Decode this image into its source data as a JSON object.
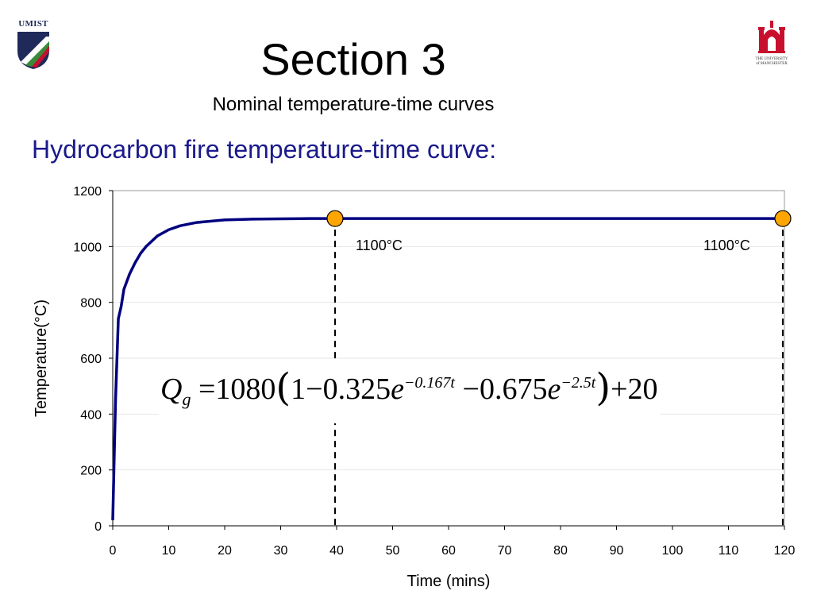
{
  "header": {
    "logo_left_text": "UMIST",
    "logo_right_text": [
      "THE UNIVERSITY",
      "of MANCHESTER"
    ],
    "title": "Section 3",
    "subtitle": "Nominal temperature-time curves",
    "heading": "Hydrocarbon fire temperature-time curve:"
  },
  "colors": {
    "heading": "#1a1a8c",
    "curve": "#000080",
    "marker_fill": "#ffa500",
    "logo_navy": "#1f2a5a",
    "logo_green": "#3a8a3a",
    "logo_red": "#c8102e"
  },
  "formula": {
    "lhs": "Q",
    "lhs_sub": "g",
    "eq": "=",
    "coef": "1080",
    "open": "(",
    "one": "1",
    "minus1": "−",
    "a": "0.325",
    "e1": "e",
    "exp1": "−0.167t",
    "minus2": "−",
    "b": "0.675",
    "e2": "e",
    "exp2": "−2.5t",
    "close": ")",
    "plus": "+",
    "const": "20"
  },
  "chart_data": {
    "type": "line",
    "title": "",
    "xlabel": "Time (mins)",
    "ylabel": "Temperature(°C)",
    "xlim": [
      0,
      120
    ],
    "ylim": [
      0,
      1200
    ],
    "xticks": [
      0,
      10,
      20,
      30,
      40,
      50,
      60,
      70,
      80,
      90,
      100,
      110,
      120
    ],
    "yticks": [
      0,
      200,
      400,
      600,
      800,
      1000,
      1200
    ],
    "grid": "horizontal",
    "legend": "none",
    "series": [
      {
        "x": [
          0,
          0.5,
          1,
          1.5,
          2,
          3,
          4,
          5,
          6,
          8,
          10,
          12,
          15,
          20,
          25,
          30,
          35,
          40,
          50,
          60,
          70,
          80,
          90,
          100,
          110,
          120
        ],
        "y": [
          20,
          450,
          741,
          785,
          847,
          901,
          942,
          976,
          1001,
          1038,
          1060,
          1074,
          1086,
          1095,
          1098,
          1099,
          1100,
          1100,
          1100,
          1100,
          1100,
          1100,
          1100,
          1100,
          1100,
          1100
        ]
      }
    ],
    "markers": [
      {
        "x": 40,
        "y": 1100,
        "label": "1100°C"
      },
      {
        "x": 120,
        "y": 1100,
        "label": "1100°C"
      }
    ],
    "dashed_vlines": [
      40,
      120
    ]
  }
}
